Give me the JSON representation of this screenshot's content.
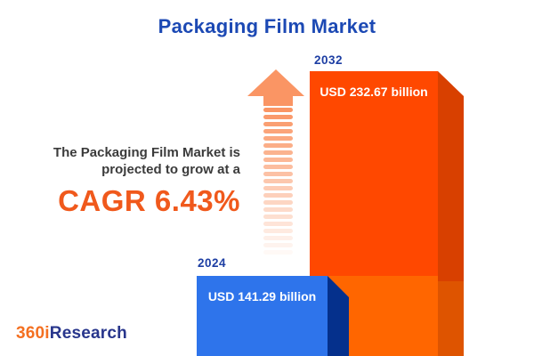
{
  "title": "Packaging Film Market",
  "description": {
    "line1": "The Packaging Film Market is",
    "line2": "projected to grow at a",
    "cagr": "CAGR 6.43%"
  },
  "logo": {
    "prefix": "360i",
    "suffix": "Research"
  },
  "chart_data": {
    "type": "bar",
    "title": "Packaging Film Market",
    "orientation": "vertical",
    "bar_style": "3d-infographic",
    "categories": [
      "2024",
      "2032"
    ],
    "series": [
      {
        "name": "Market size (USD billion)",
        "values": [
          141.29,
          232.67
        ]
      }
    ],
    "value_labels": [
      "USD 141.29 billion",
      "USD 232.67 billion"
    ],
    "value_prefix": "USD",
    "value_suffix": "billion",
    "cagr_percent": 6.43,
    "annotations": [
      "The Packaging Film Market is projected to grow at a CAGR 6.43%"
    ],
    "legend": "none",
    "axes": "none",
    "grid": "off"
  },
  "colors": {
    "background": "#FFFFFF",
    "title_blue": "#1C49B4",
    "year_label_blue": "#1D3EA3",
    "desc_text": "#3B3B3B",
    "cagr_orange": "#F0591C",
    "arrow_orange": "#FA9564",
    "bar2024_face": "#2E74EB",
    "bar2024_side": "#05308C",
    "bar2032_face_top": "#FF4800",
    "bar2032_face_bottom": "#FF6600",
    "bar2032_side_top": "#D84000",
    "bar2032_side_bottom": "#DE5400",
    "value_text": "#FFFFFF",
    "logo_orange": "#F47021",
    "logo_navy": "#28368C"
  }
}
